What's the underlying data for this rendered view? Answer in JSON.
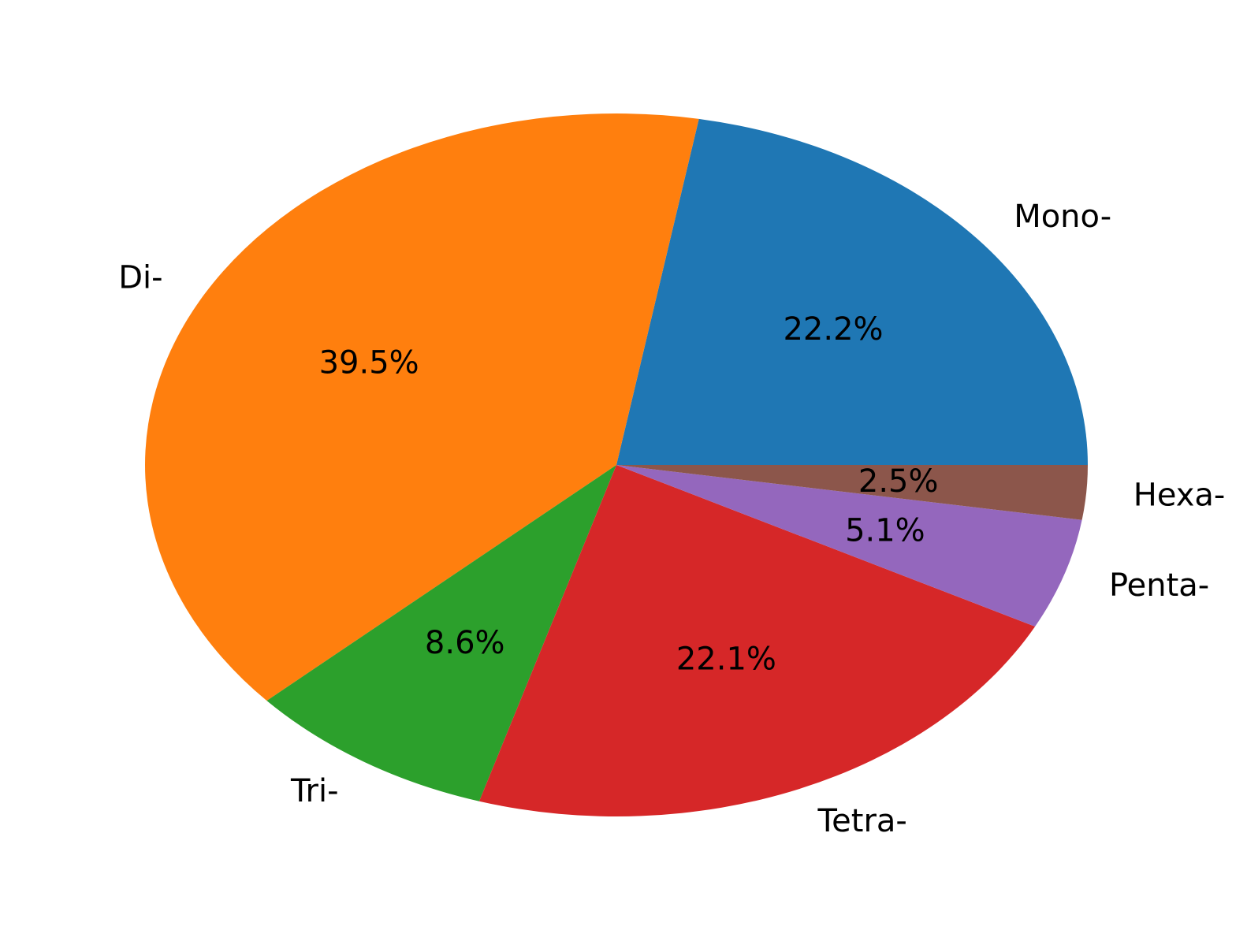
{
  "chart_data": {
    "type": "pie",
    "title": "",
    "categories": [
      "Mono-",
      "Di-",
      "Tri-",
      "Tetra-",
      "Penta-",
      "Hexa-"
    ],
    "values": [
      22.2,
      39.5,
      8.6,
      22.1,
      5.1,
      2.5
    ],
    "value_labels": [
      "22.2%",
      "39.5%",
      "8.6%",
      "22.1%",
      "5.1%",
      "2.5%"
    ],
    "colors": [
      "#1f77b4",
      "#ff7f0e",
      "#2ca02c",
      "#d62728",
      "#9467bd",
      "#8c564b"
    ],
    "start_angle_deg": 0,
    "direction": "counterclockwise",
    "legend": "none"
  }
}
